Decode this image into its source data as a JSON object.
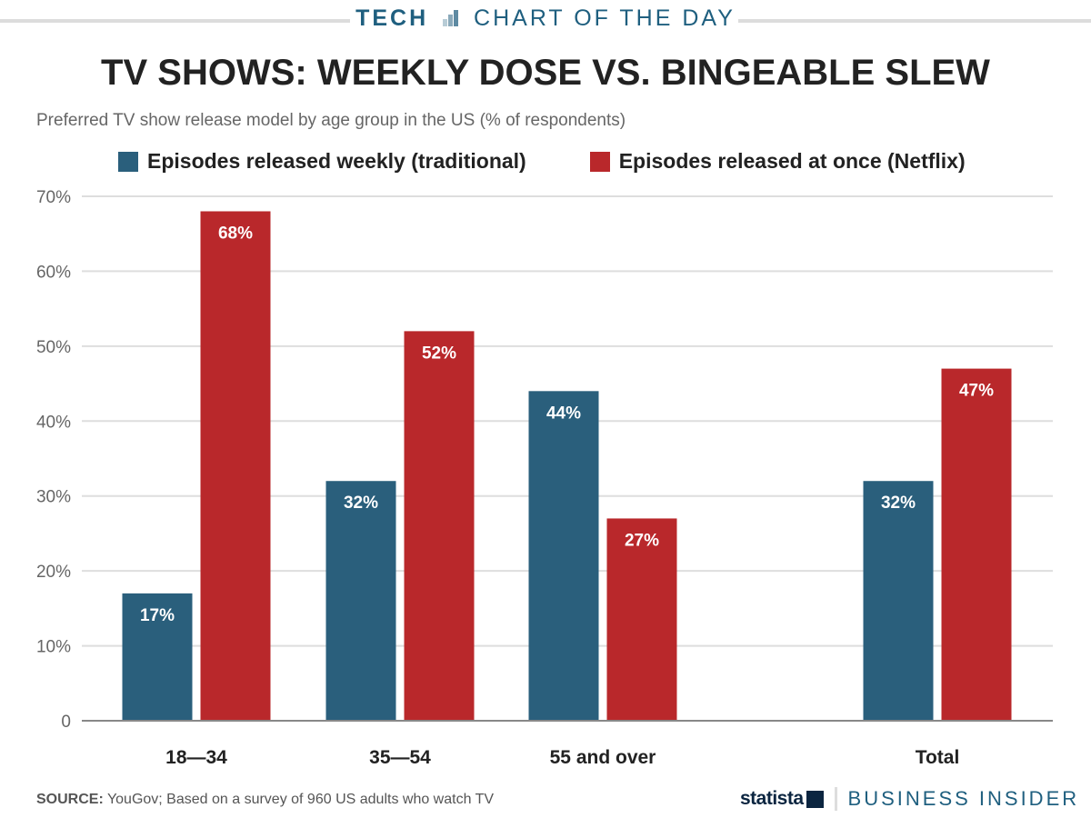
{
  "header": {
    "kicker_bold": "TECH",
    "kicker_rest": "CHART OF THE DAY"
  },
  "chart_data": {
    "type": "bar",
    "title": "TV SHOWS: WEEKLY DOSE VS. BINGEABLE SLEW",
    "subtitle": "Preferred TV show release model by age group in the US (% of respondents)",
    "categories": [
      "18—34",
      "35—54",
      "55 and over",
      "Total"
    ],
    "series": [
      {
        "name": "Episodes released weekly (traditional)",
        "color": "#2a5f7c",
        "values": [
          17,
          32,
          44,
          32
        ]
      },
      {
        "name": "Episodes released at once (Netflix)",
        "color": "#b9282b",
        "values": [
          68,
          52,
          27,
          47
        ]
      }
    ],
    "ylim": [
      0,
      70
    ],
    "yticks": [
      0,
      10,
      20,
      30,
      40,
      50,
      60,
      70
    ],
    "ytick_labels": [
      "0",
      "10%",
      "20%",
      "30%",
      "40%",
      "50%",
      "60%",
      "70%"
    ],
    "data_labels": [
      [
        "17%",
        "32%",
        "44%",
        "32%"
      ],
      [
        "68%",
        "52%",
        "27%",
        "47%"
      ]
    ],
    "grid": true,
    "legend_placement": "top"
  },
  "footer": {
    "source_label": "SOURCE:",
    "source_text": " YouGov; Based on a survey of 960 US adults who watch TV",
    "statista": "statista",
    "business_insider": "BUSINESS INSIDER"
  }
}
